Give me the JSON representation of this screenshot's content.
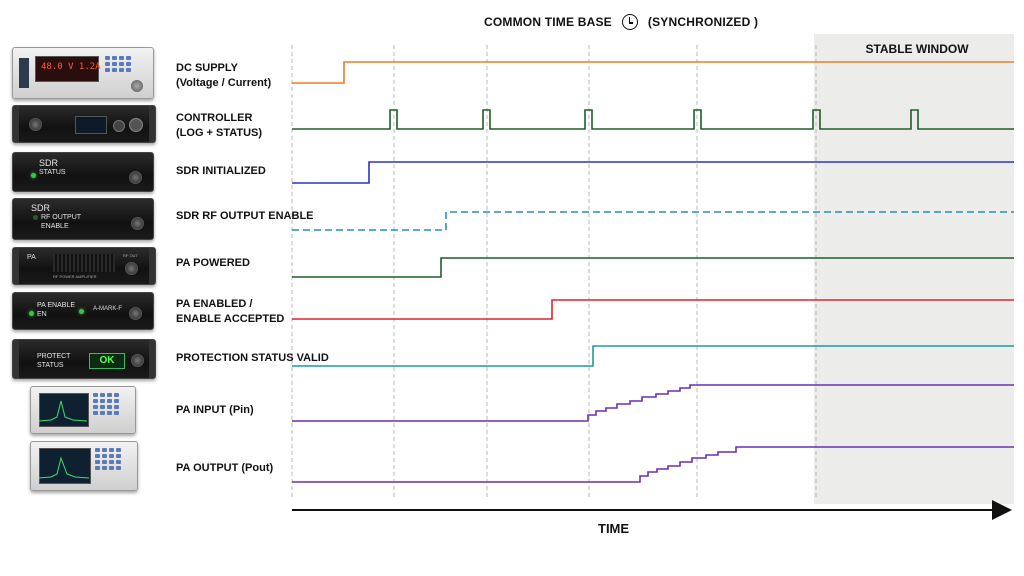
{
  "header": {
    "title": "COMMON TIME BASE",
    "sync_label": "(SYNCHRONIZED )"
  },
  "stable_window": {
    "label": "STABLE WINDOW",
    "color": "#ececea"
  },
  "axis": {
    "label": "TIME"
  },
  "devices": {
    "dc_supply": {
      "type": "bench power supply",
      "icon": "power-supply-icon"
    },
    "controller": {
      "type": "rack controller",
      "icon": "controller-icon"
    },
    "sdr": {
      "text1": "SDR",
      "text2": "STATUS"
    },
    "sdr_rf": {
      "text1": "SDR",
      "text2": "RF OUTPUT",
      "text3": "ENABLE"
    },
    "pa": {
      "text1": "PA",
      "text2": "RF POWER AMPLIFIER",
      "text3": "RF OUT"
    },
    "pa_enable": {
      "text1": "PA ENABLE",
      "text2": "EN",
      "brand": "A-MARK-F"
    },
    "protect": {
      "text1": "PROTECT",
      "text2": "STATUS",
      "display": "OK"
    },
    "pin_analyzer": {
      "type": "spectrum analyzer",
      "icon": "analyzer-icon"
    },
    "pout_analyzer": {
      "type": "spectrum analyzer",
      "icon": "analyzer-icon"
    }
  },
  "signals": [
    {
      "id": "dc_supply",
      "line1": "DC SUPPLY",
      "line2": "(Voltage / Current)",
      "color": "#f07c2a"
    },
    {
      "id": "controller",
      "line1": "CONTROLLER",
      "line2": "(LOG + STATUS)",
      "color": "#1f5e2a"
    },
    {
      "id": "sdr_init",
      "line1": "SDR INITIALIZED",
      "line2": "",
      "color": "#2a33c8"
    },
    {
      "id": "sdr_rf",
      "line1": "SDR RF OUTPUT ENABLE",
      "line2": "",
      "color": "#2a8fb0",
      "style": "dashed"
    },
    {
      "id": "pa_powered",
      "line1": "PA POWERED",
      "line2": "",
      "color": "#1f5e2a"
    },
    {
      "id": "pa_enabled",
      "line1": "PA ENABLED /",
      "line2": "ENABLE ACCEPTED",
      "color": "#e0242a"
    },
    {
      "id": "protection",
      "line1": "PROTECTION STATUS VALID",
      "line2": "",
      "color": "#1f9aa0"
    },
    {
      "id": "pa_input",
      "line1": "PA INPUT (Pin)",
      "line2": "",
      "color": "#6a2fb8"
    },
    {
      "id": "pa_output",
      "line1": "PA OUTPUT (Pout)",
      "line2": "",
      "color": "#6a2fb8"
    }
  ]
}
